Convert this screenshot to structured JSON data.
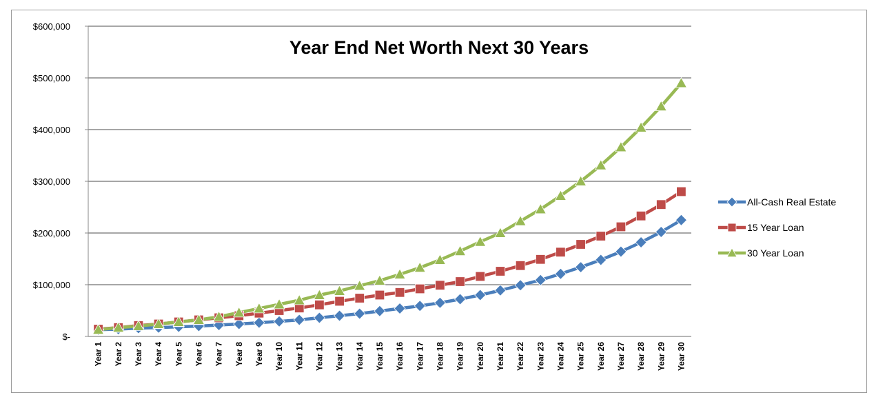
{
  "chart_data": {
    "type": "line",
    "title": "Year End Net Worth Next 30 Years",
    "xlabel": "",
    "ylabel": "",
    "ylim": [
      0,
      600000
    ],
    "yticks": [
      0,
      100000,
      200000,
      300000,
      400000,
      500000,
      600000
    ],
    "ytick_labels": [
      "$-",
      "$100,000",
      "$200,000",
      "$300,000",
      "$400,000",
      "$500,000",
      "$600,000"
    ],
    "grid": "horizontal",
    "legend_position": "right",
    "categories": [
      "Year 1",
      "Year 2",
      "Year 3",
      "Year 4",
      "Year 5",
      "Year 6",
      "Year 7",
      "Year 8",
      "Year 9",
      "Year 10",
      "Year 11",
      "Year 12",
      "Year 13",
      "Year 14",
      "Year 15",
      "Year 16",
      "Year 17",
      "Year 18",
      "Year 19",
      "Year 20",
      "Year 21",
      "Year 22",
      "Year 23",
      "Year 24",
      "Year 25",
      "Year 26",
      "Year 27",
      "Year 28",
      "Year 29",
      "Year 30"
    ],
    "series": [
      {
        "name": "All-Cash Real Estate",
        "color": "#4a7ebb",
        "marker": "diamond",
        "values": [
          13000,
          14000,
          16000,
          17000,
          18500,
          20000,
          22000,
          24000,
          26500,
          29000,
          32000,
          36000,
          40000,
          44000,
          49000,
          54000,
          59000,
          65000,
          72000,
          80000,
          89000,
          99000,
          109000,
          121000,
          134000,
          148000,
          164000,
          182000,
          202000,
          225000
        ]
      },
      {
        "name": "15 Year Loan",
        "color": "#be4b48",
        "marker": "square",
        "values": [
          14000,
          17000,
          21000,
          24000,
          28000,
          32000,
          36000,
          40000,
          45000,
          50000,
          55000,
          61000,
          68000,
          74000,
          80000,
          85000,
          92000,
          99000,
          106000,
          116000,
          126000,
          137000,
          149000,
          163000,
          178000,
          194000,
          212000,
          233000,
          255000,
          280000
        ]
      },
      {
        "name": "30 Year Loan",
        "color": "#98b954",
        "marker": "triangle",
        "values": [
          13000,
          17000,
          20000,
          24000,
          28000,
          32000,
          38000,
          46000,
          54000,
          62000,
          70000,
          80000,
          88000,
          98000,
          108000,
          120000,
          133000,
          148000,
          165000,
          183000,
          200000,
          223000,
          246000,
          272000,
          300000,
          331000,
          366000,
          404000,
          445000,
          490000
        ]
      }
    ]
  }
}
